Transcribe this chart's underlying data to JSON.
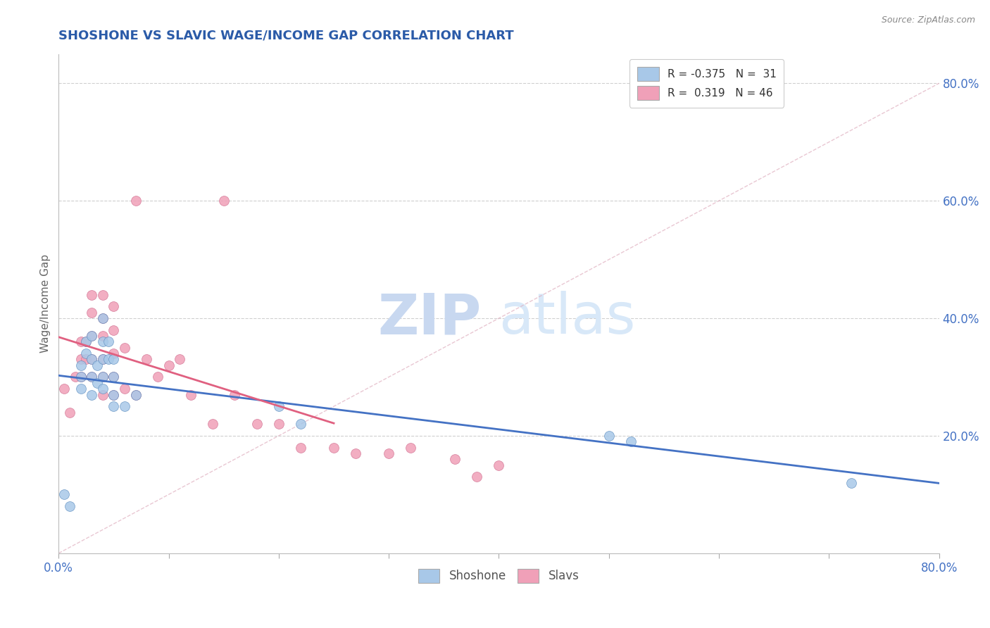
{
  "title": "SHOSHONE VS SLAVIC WAGE/INCOME GAP CORRELATION CHART",
  "source": "Source: ZipAtlas.com",
  "ylabel": "Wage/Income Gap",
  "xlim": [
    0.0,
    0.8
  ],
  "ylim": [
    0.0,
    0.85
  ],
  "xticks": [
    0.0,
    0.1,
    0.2,
    0.3,
    0.4,
    0.5,
    0.6,
    0.7,
    0.8
  ],
  "yticks_right": [
    0.2,
    0.4,
    0.6,
    0.8
  ],
  "shoshone_color": "#A8C8E8",
  "slavic_color": "#F0A0B8",
  "shoshone_line_color": "#4472C4",
  "slavic_line_color": "#E06080",
  "r_shoshone": -0.375,
  "n_shoshone": 31,
  "r_slavic": 0.319,
  "n_slavic": 46,
  "watermark_zip": "ZIP",
  "watermark_atlas": "atlas",
  "background_color": "#FFFFFF",
  "grid_color": "#BBBBBB",
  "title_color": "#2B5BA8",
  "axis_label_color": "#4472C4",
  "shoshone_x": [
    0.005,
    0.01,
    0.02,
    0.02,
    0.02,
    0.025,
    0.025,
    0.03,
    0.03,
    0.03,
    0.03,
    0.035,
    0.035,
    0.04,
    0.04,
    0.04,
    0.04,
    0.04,
    0.045,
    0.045,
    0.05,
    0.05,
    0.05,
    0.05,
    0.06,
    0.07,
    0.2,
    0.22,
    0.5,
    0.52,
    0.72
  ],
  "shoshone_y": [
    0.1,
    0.08,
    0.3,
    0.28,
    0.32,
    0.34,
    0.36,
    0.27,
    0.3,
    0.33,
    0.37,
    0.29,
    0.32,
    0.28,
    0.3,
    0.33,
    0.36,
    0.4,
    0.33,
    0.36,
    0.25,
    0.27,
    0.3,
    0.33,
    0.25,
    0.27,
    0.25,
    0.22,
    0.2,
    0.19,
    0.12
  ],
  "slavic_x": [
    0.005,
    0.01,
    0.015,
    0.02,
    0.02,
    0.02,
    0.025,
    0.025,
    0.03,
    0.03,
    0.03,
    0.03,
    0.03,
    0.04,
    0.04,
    0.04,
    0.04,
    0.04,
    0.04,
    0.05,
    0.05,
    0.05,
    0.05,
    0.05,
    0.06,
    0.06,
    0.07,
    0.07,
    0.08,
    0.09,
    0.1,
    0.11,
    0.12,
    0.14,
    0.15,
    0.16,
    0.18,
    0.2,
    0.22,
    0.25,
    0.27,
    0.3,
    0.32,
    0.36,
    0.38,
    0.4
  ],
  "slavic_y": [
    0.28,
    0.24,
    0.3,
    0.3,
    0.33,
    0.36,
    0.33,
    0.36,
    0.3,
    0.33,
    0.37,
    0.41,
    0.44,
    0.27,
    0.3,
    0.33,
    0.37,
    0.4,
    0.44,
    0.27,
    0.3,
    0.34,
    0.38,
    0.42,
    0.28,
    0.35,
    0.27,
    0.6,
    0.33,
    0.3,
    0.32,
    0.33,
    0.27,
    0.22,
    0.6,
    0.27,
    0.22,
    0.22,
    0.18,
    0.18,
    0.17,
    0.17,
    0.18,
    0.16,
    0.13,
    0.15
  ]
}
